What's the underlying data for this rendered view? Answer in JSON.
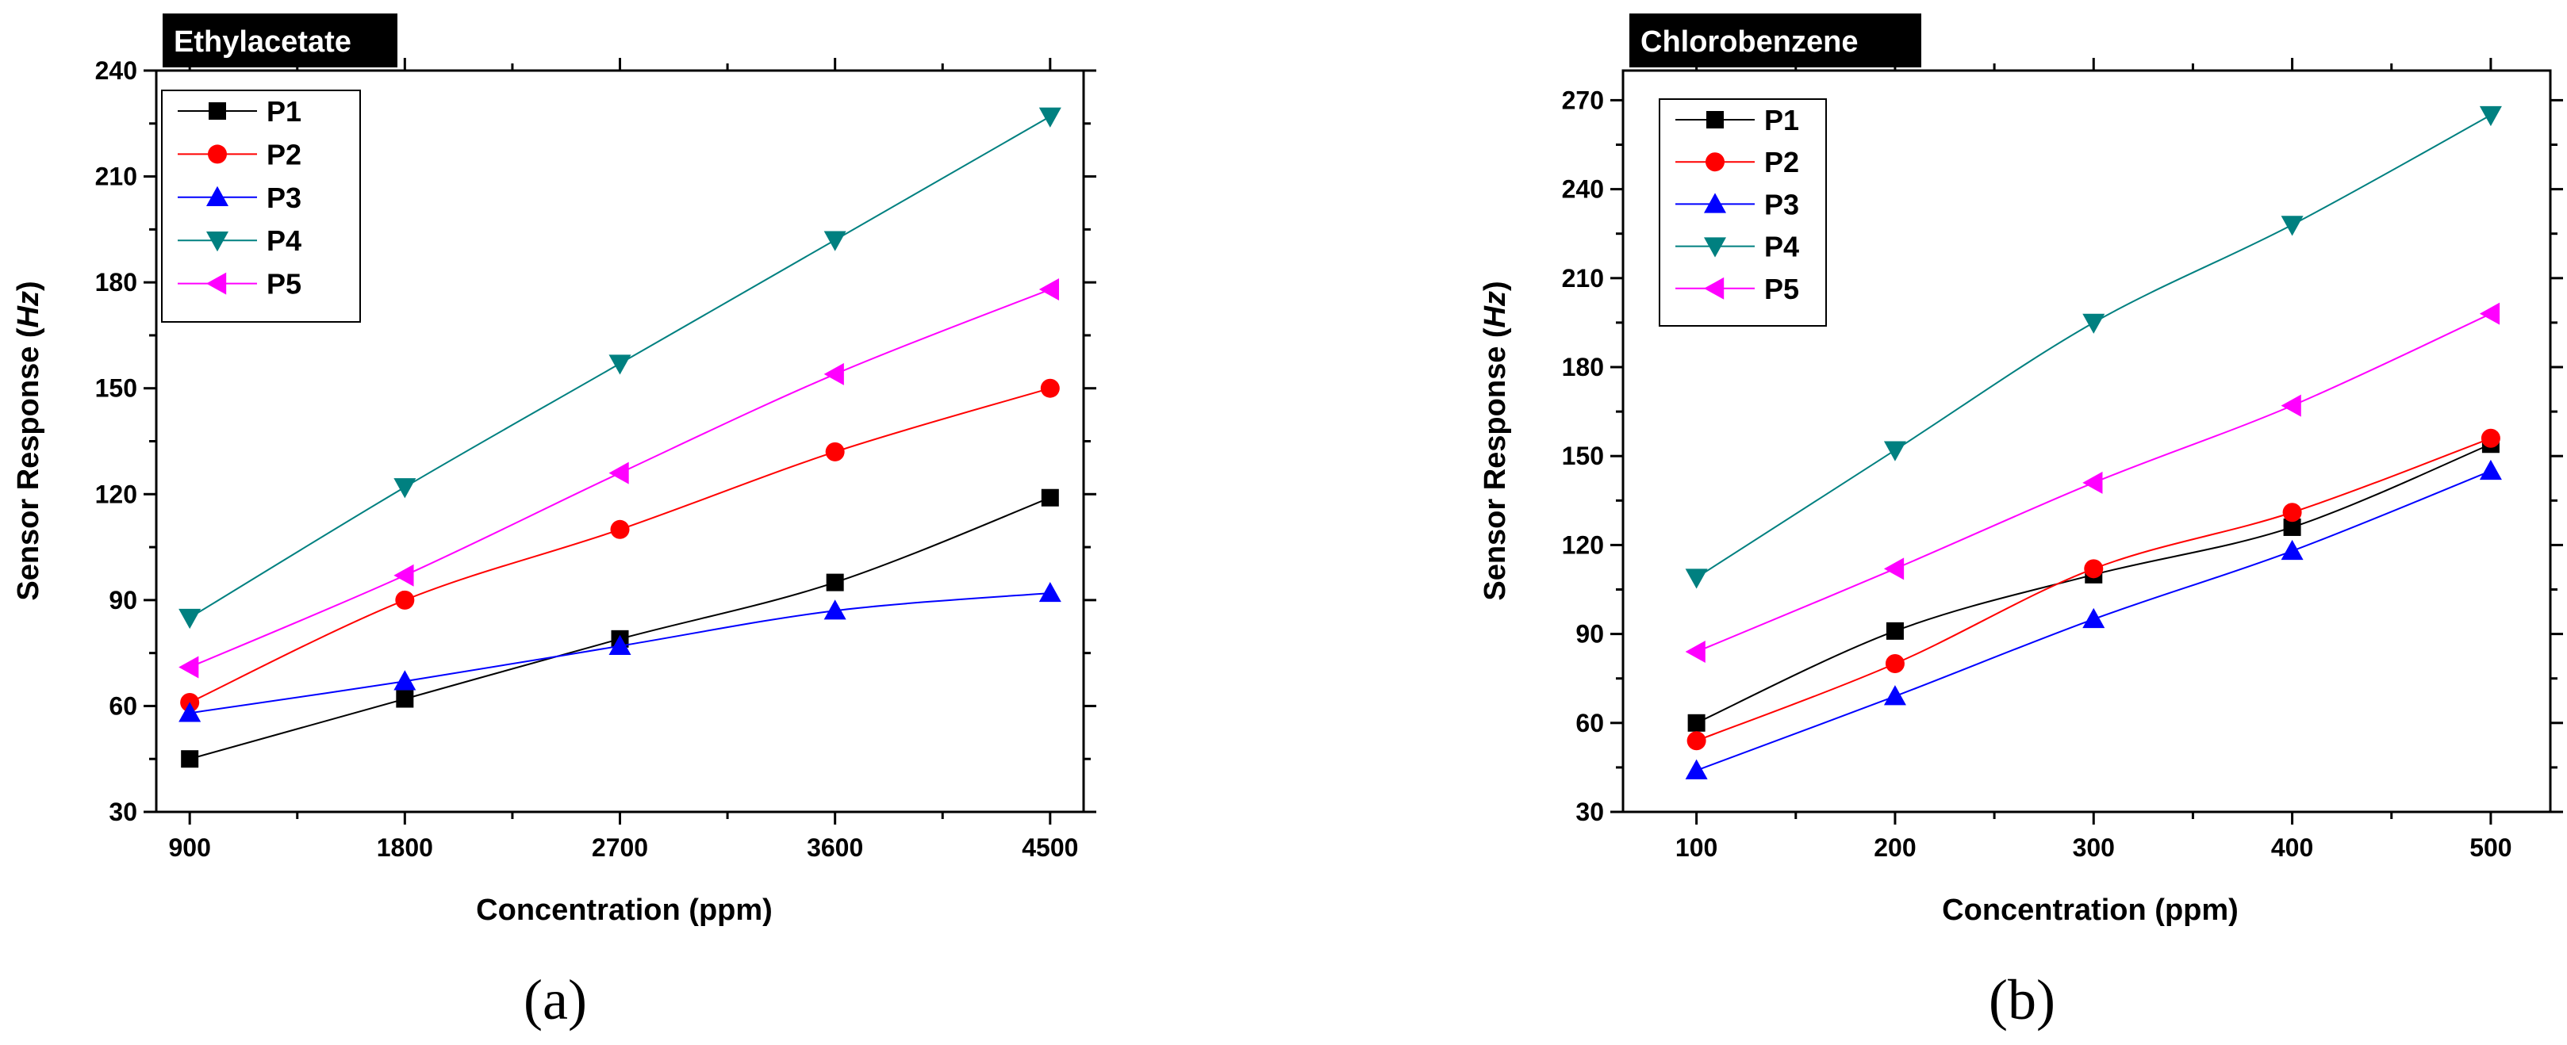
{
  "chart_data": [
    {
      "type": "line",
      "title": "Ethylacetate",
      "panel_label": "(a)",
      "xlabel": "Concentration (ppm)",
      "ylabel_prefix": "Sensor Response (",
      "ylabel_unit": "Hz",
      "ylabel_suffix": ")",
      "x": [
        900,
        1800,
        2700,
        3600,
        4500
      ],
      "xlim": [
        760,
        4640
      ],
      "xticks": [
        900,
        1800,
        2700,
        3600,
        4500
      ],
      "ylim": [
        30,
        240
      ],
      "yticks": [
        30,
        60,
        90,
        120,
        150,
        180,
        210,
        240
      ],
      "legend_position": "top-left",
      "series": [
        {
          "name": "P1",
          "color": "#000000",
          "marker": "square",
          "values": [
            45,
            62,
            79,
            95,
            119
          ]
        },
        {
          "name": "P2",
          "color": "#ff0000",
          "marker": "circle",
          "values": [
            61,
            90,
            110,
            132,
            150
          ]
        },
        {
          "name": "P3",
          "color": "#0000ff",
          "marker": "triangle-up",
          "values": [
            58,
            67,
            77,
            87,
            92
          ]
        },
        {
          "name": "P4",
          "color": "#008080",
          "marker": "triangle-down",
          "values": [
            85,
            122,
            157,
            192,
            227
          ]
        },
        {
          "name": "P5",
          "color": "#ff00ff",
          "marker": "triangle-left",
          "values": [
            71,
            97,
            126,
            154,
            178
          ]
        }
      ]
    },
    {
      "type": "line",
      "title": "Chlorobenzene",
      "panel_label": "(b)",
      "xlabel": "Concentration (ppm)",
      "ylabel_prefix": "Sensor Response (",
      "ylabel_unit": "Hz",
      "ylabel_suffix": ")",
      "x": [
        100,
        200,
        300,
        400,
        500
      ],
      "xlim": [
        63,
        530
      ],
      "xticks": [
        100,
        200,
        300,
        400,
        500
      ],
      "ylim": [
        30,
        280
      ],
      "yticks": [
        30,
        60,
        90,
        120,
        150,
        180,
        210,
        240,
        270
      ],
      "legend_position": "top-left",
      "series": [
        {
          "name": "P1",
          "color": "#000000",
          "marker": "square",
          "values": [
            60,
            91,
            110,
            126,
            154
          ]
        },
        {
          "name": "P2",
          "color": "#ff0000",
          "marker": "circle",
          "values": [
            54,
            80,
            112,
            131,
            156
          ]
        },
        {
          "name": "P3",
          "color": "#0000ff",
          "marker": "triangle-up",
          "values": [
            44,
            69,
            95,
            118,
            145
          ]
        },
        {
          "name": "P4",
          "color": "#008080",
          "marker": "triangle-down",
          "values": [
            109,
            152,
            195,
            228,
            265
          ]
        },
        {
          "name": "P5",
          "color": "#ff00ff",
          "marker": "triangle-left",
          "values": [
            84,
            112,
            141,
            167,
            198
          ]
        }
      ]
    }
  ]
}
